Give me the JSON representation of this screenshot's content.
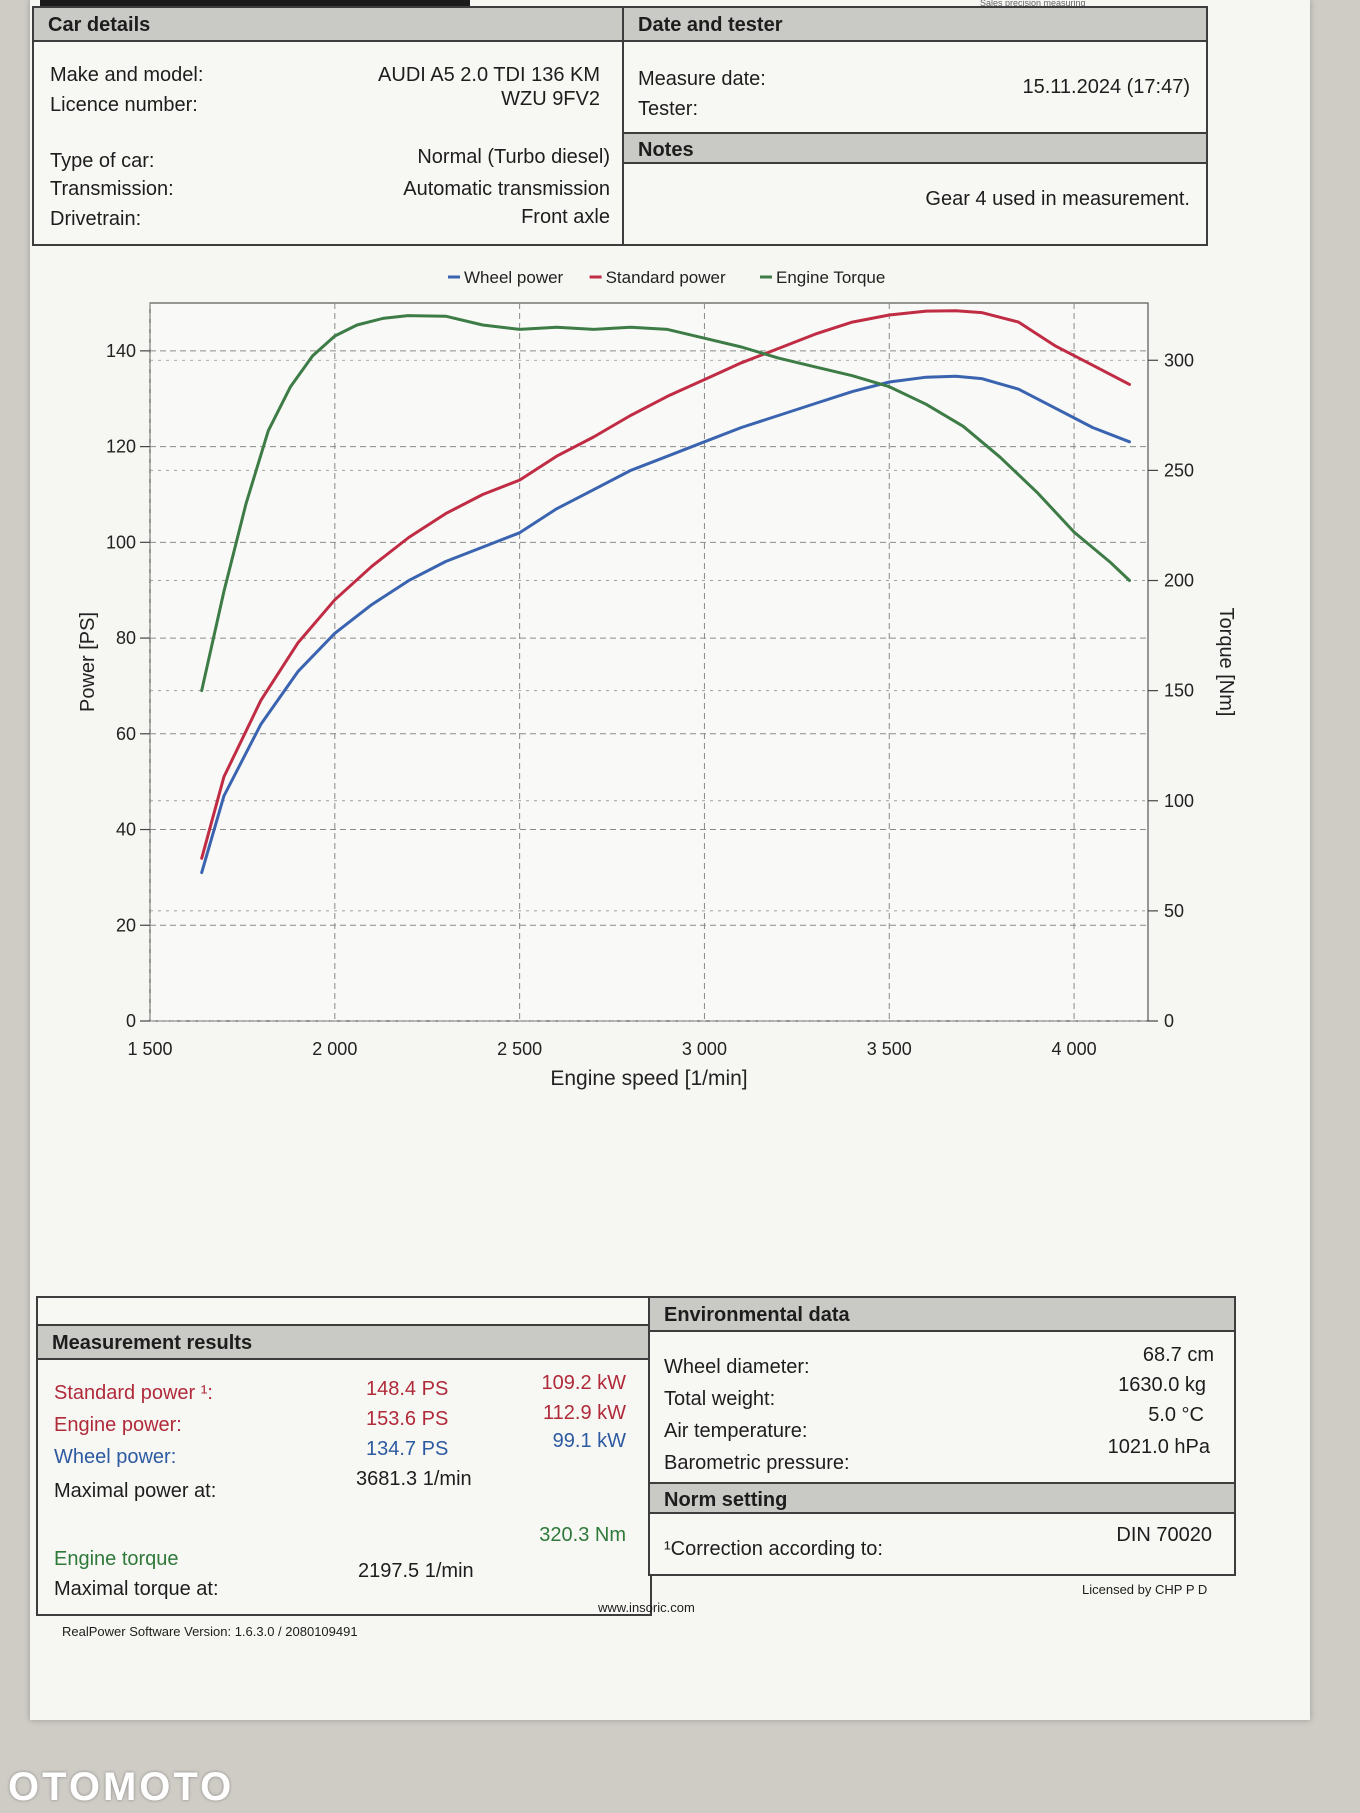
{
  "header": {
    "brand_text": "Sales precision measuring"
  },
  "car_details": {
    "title": "Car details",
    "rows": [
      {
        "label": "Make and model:",
        "value": "AUDI  A5 2.0 TDI   136 KM"
      },
      {
        "label": "Licence number:",
        "value": "WZU 9FV2"
      },
      {
        "label": "Type of car:",
        "value": "Normal (Turbo diesel)"
      },
      {
        "label": "Transmission:",
        "value": "Automatic transmission"
      },
      {
        "label": "Drivetrain:",
        "value": "Front axle"
      }
    ]
  },
  "date_tester": {
    "title": "Date and tester",
    "measure_date_label": "Measure date:",
    "measure_date_value": "15.11.2024 (17:47)",
    "tester_label": "Tester:",
    "tester_value": ""
  },
  "notes": {
    "title": "Notes",
    "text": "Gear 4 used in measurement."
  },
  "chart_data": {
    "type": "line",
    "legend_position": "top-center",
    "grid": true,
    "xlabel": "Engine speed [1/min]",
    "ylabel": "Power [PS]",
    "y2label": "Torque [Nm]",
    "xlim": [
      1500,
      4200
    ],
    "ylim": [
      0,
      150
    ],
    "y2lim": [
      0,
      326
    ],
    "xticks": [
      "1 500",
      "2 000",
      "2 500",
      "3 000",
      "3 500",
      "4 000"
    ],
    "yticks": [
      "0",
      "20",
      "40",
      "60",
      "80",
      "100",
      "120",
      "140"
    ],
    "y2ticks": [
      "0",
      "50",
      "100",
      "150",
      "200",
      "250",
      "300"
    ],
    "series": [
      {
        "name": "Wheel power",
        "axis": "left",
        "color": "#3a64b0",
        "x": [
          1640,
          1700,
          1800,
          1900,
          2000,
          2100,
          2200,
          2300,
          2400,
          2500,
          2600,
          2700,
          2800,
          2900,
          3000,
          3100,
          3200,
          3300,
          3400,
          3500,
          3600,
          3680,
          3750,
          3850,
          3950,
          4050,
          4150
        ],
        "y": [
          31,
          47,
          62,
          73,
          81,
          87,
          92,
          96,
          99,
          102,
          107,
          111,
          115,
          118,
          121,
          124,
          126.5,
          129,
          131.5,
          133.5,
          134.5,
          134.7,
          134.2,
          132,
          128,
          124,
          121
        ]
      },
      {
        "name": "Standard power",
        "axis": "left",
        "color": "#c02c44",
        "x": [
          1640,
          1700,
          1800,
          1900,
          2000,
          2100,
          2200,
          2300,
          2400,
          2500,
          2600,
          2700,
          2800,
          2900,
          3000,
          3100,
          3200,
          3300,
          3400,
          3500,
          3600,
          3680,
          3750,
          3850,
          3950,
          4050,
          4150
        ],
        "y": [
          34,
          51,
          67,
          79,
          88,
          95,
          101,
          106,
          110,
          113,
          118,
          122,
          126.5,
          130.5,
          134,
          137.5,
          140.5,
          143.5,
          146,
          147.5,
          148.3,
          148.4,
          148,
          146,
          141,
          137,
          133
        ]
      },
      {
        "name": "Engine Torque",
        "axis": "right",
        "color": "#3d7c46",
        "x": [
          1640,
          1700,
          1760,
          1820,
          1880,
          1940,
          2000,
          2060,
          2130,
          2197.5,
          2300,
          2400,
          2500,
          2600,
          2700,
          2800,
          2900,
          3000,
          3100,
          3200,
          3300,
          3400,
          3500,
          3600,
          3700,
          3800,
          3900,
          4000,
          4100,
          4150
        ],
        "y": [
          150,
          195,
          235,
          268,
          288,
          302,
          311,
          316,
          319,
          320.3,
          320,
          316,
          314,
          315,
          314,
          315,
          314,
          310,
          306,
          301,
          297,
          293,
          288,
          280,
          270,
          256,
          240,
          222,
          208,
          200
        ]
      }
    ]
  },
  "measurement_results": {
    "title": "Measurement results",
    "rows": [
      {
        "label": "Standard power ¹:",
        "ps": "148.4  PS",
        "kw": "109.2  kW",
        "color": "red"
      },
      {
        "label": "Engine power:",
        "ps": "153.6  PS",
        "kw": "112.9  kW",
        "color": "red"
      },
      {
        "label": "Wheel power:",
        "ps": "134.7  PS",
        "kw": "99.1  kW",
        "color": "blue"
      }
    ],
    "max_power_label": "Maximal power at:",
    "max_power_value": "3681.3  1/min",
    "engine_torque_label": "Engine torque",
    "engine_torque_value": "320.3  Nm",
    "max_torque_label": "Maximal torque at:",
    "max_torque_value": "2197.5  1/min"
  },
  "environmental": {
    "title": "Environmental data",
    "rows": [
      {
        "label": "Wheel diameter:",
        "value": "68.7  cm"
      },
      {
        "label": "Total weight:",
        "value": "1630.0  kg"
      },
      {
        "label": "Air temperature:",
        "value": "5.0  °C"
      },
      {
        "label": "Barometric pressure:",
        "value": "1021.0  hPa"
      }
    ]
  },
  "norm_setting": {
    "title": "Norm setting",
    "label": "¹Correction according to:",
    "value": "DIN 70020"
  },
  "footer": {
    "website": "www.insoric.com",
    "license": "Licensed by CHP P D",
    "version": "RealPower Software Version: 1.6.3.0 / 2080109491"
  },
  "watermark": "OTOMOTO"
}
